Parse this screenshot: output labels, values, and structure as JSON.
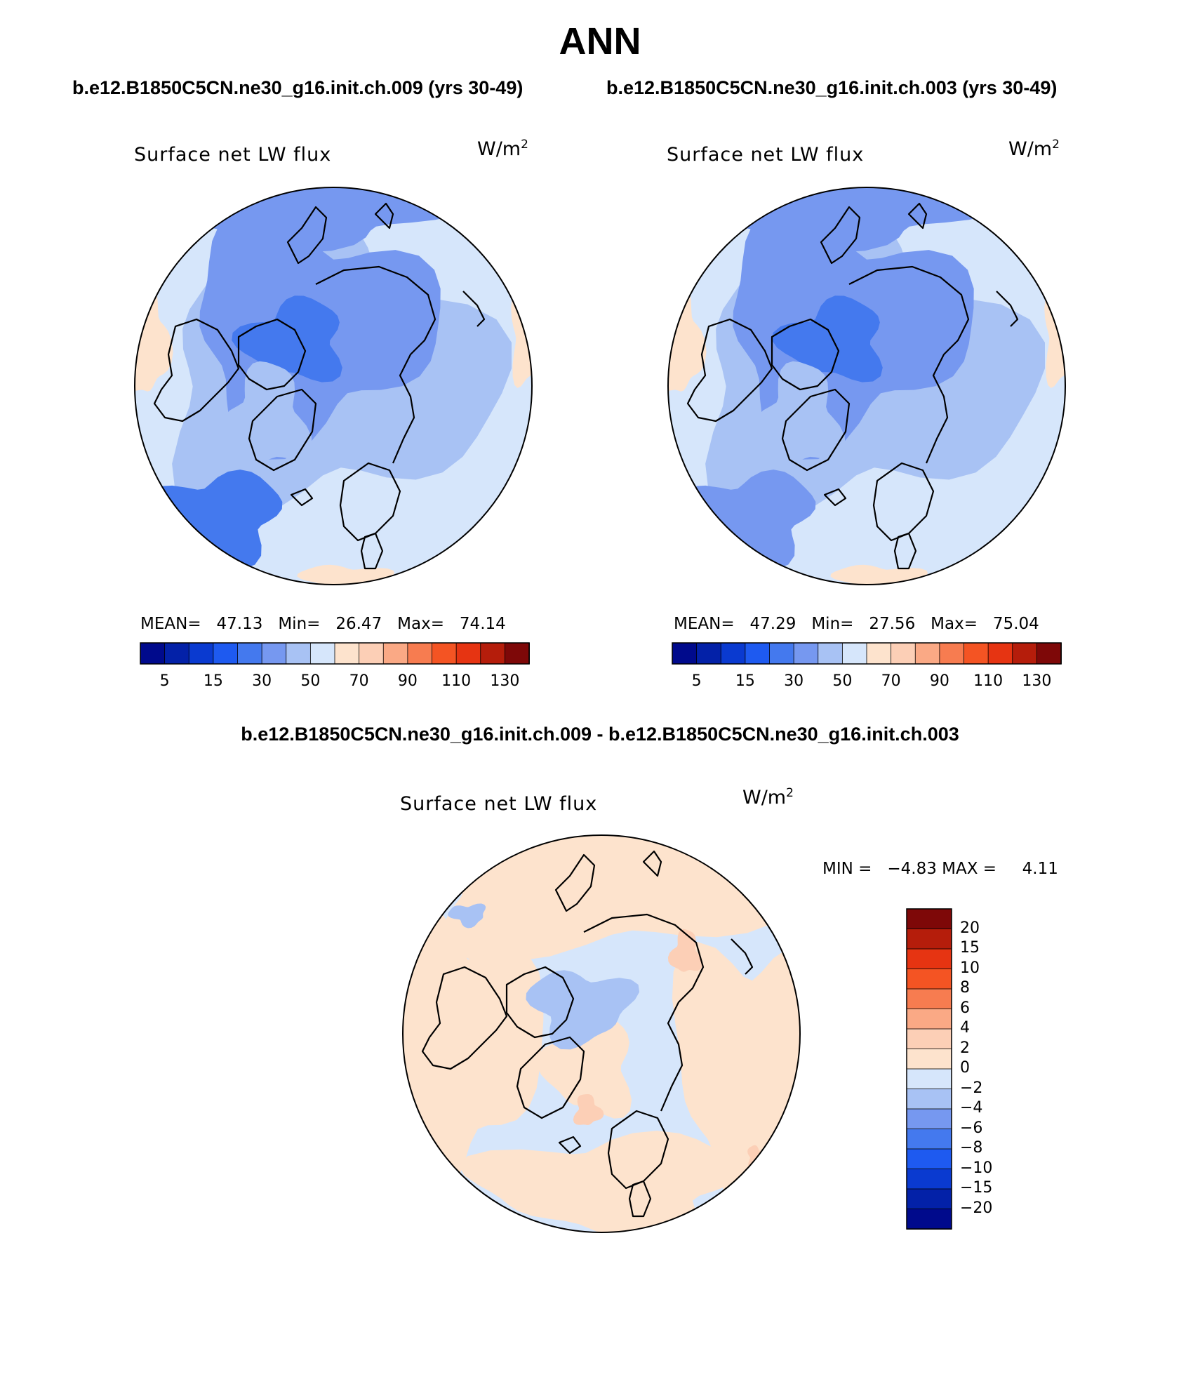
{
  "title": "ANN",
  "run_a": "b.e12.B1850C5CN.ne30_g16.init.ch.009 (yrs 30-49)",
  "run_b": "b.e12.B1850C5CN.ne30_g16.init.ch.003 (yrs 30-49)",
  "diff_title": "b.e12.B1850C5CN.ne30_g16.init.ch.009 - b.e12.B1850C5CN.ne30_g16.init.ch.003",
  "variable": "Surface net LW flux",
  "units": {
    "base": "W/m",
    "exp": "2"
  },
  "panel_left": {
    "mean_label": "MEAN=",
    "mean": "47.13",
    "min_label": "Min=",
    "min": "26.47",
    "max_label": "Max=",
    "max": "74.14"
  },
  "panel_right": {
    "mean_label": "MEAN=",
    "mean": "47.29",
    "min_label": "Min=",
    "min": "27.56",
    "max_label": "Max=",
    "max": "75.04"
  },
  "panel_diff": {
    "min_label": "MIN =",
    "min": "−4.83",
    "max_label": "MAX =",
    "max": "4.11"
  },
  "chart_data": [
    {
      "type": "heatmap",
      "projection": "north-polar-stereographic",
      "title": "Surface net LW flux",
      "units": "W/m2",
      "run": "b.e12.B1850C5CN.ne30_g16.init.ch.009 (yrs 30-49)",
      "mean": 47.13,
      "min": 26.47,
      "max": 74.14,
      "colorbar_levels": [
        5,
        10,
        15,
        20,
        30,
        40,
        50,
        60,
        70,
        80,
        90,
        100,
        110,
        120,
        130
      ],
      "colorbar_labels": [
        "5",
        "15",
        "30",
        "50",
        "70",
        "90",
        "110",
        "130"
      ]
    },
    {
      "type": "heatmap",
      "projection": "north-polar-stereographic",
      "title": "Surface net LW flux",
      "units": "W/m2",
      "run": "b.e12.B1850C5CN.ne30_g16.init.ch.003 (yrs 30-49)",
      "mean": 47.29,
      "min": 27.56,
      "max": 75.04,
      "colorbar_levels": [
        5,
        10,
        15,
        20,
        30,
        40,
        50,
        60,
        70,
        80,
        90,
        100,
        110,
        120,
        130
      ],
      "colorbar_labels": [
        "5",
        "15",
        "30",
        "50",
        "70",
        "90",
        "110",
        "130"
      ]
    },
    {
      "type": "heatmap",
      "projection": "north-polar-stereographic",
      "title": "Surface net LW flux",
      "units": "W/m2",
      "run": "b.e12.B1850C5CN.ne30_g16.init.ch.009 - b.e12.B1850C5CN.ne30_g16.init.ch.003",
      "min": -4.83,
      "max": 4.11,
      "colorbar_levels": [
        20,
        15,
        10,
        8,
        6,
        4,
        2,
        0,
        -2,
        -4,
        -6,
        -8,
        -10,
        -15,
        -20
      ],
      "colorbar_labels": [
        "20",
        "15",
        "10",
        "8",
        "6",
        "4",
        "2",
        "0",
        "−2",
        "−4",
        "−6",
        "−8",
        "−10",
        "−15",
        "−20"
      ]
    }
  ],
  "colors": {
    "scale": [
      "#000a8c",
      "#0321a8",
      "#0a3ad0",
      "#1e5af0",
      "#4479ee",
      "#7698f0",
      "#a8c2f4",
      "#d6e6fb",
      "#fde3cd",
      "#fccfb6",
      "#faa985",
      "#f77c50",
      "#f45423",
      "#e63412",
      "#b51d0b",
      "#7e0808"
    ],
    "coast": "#000000"
  }
}
